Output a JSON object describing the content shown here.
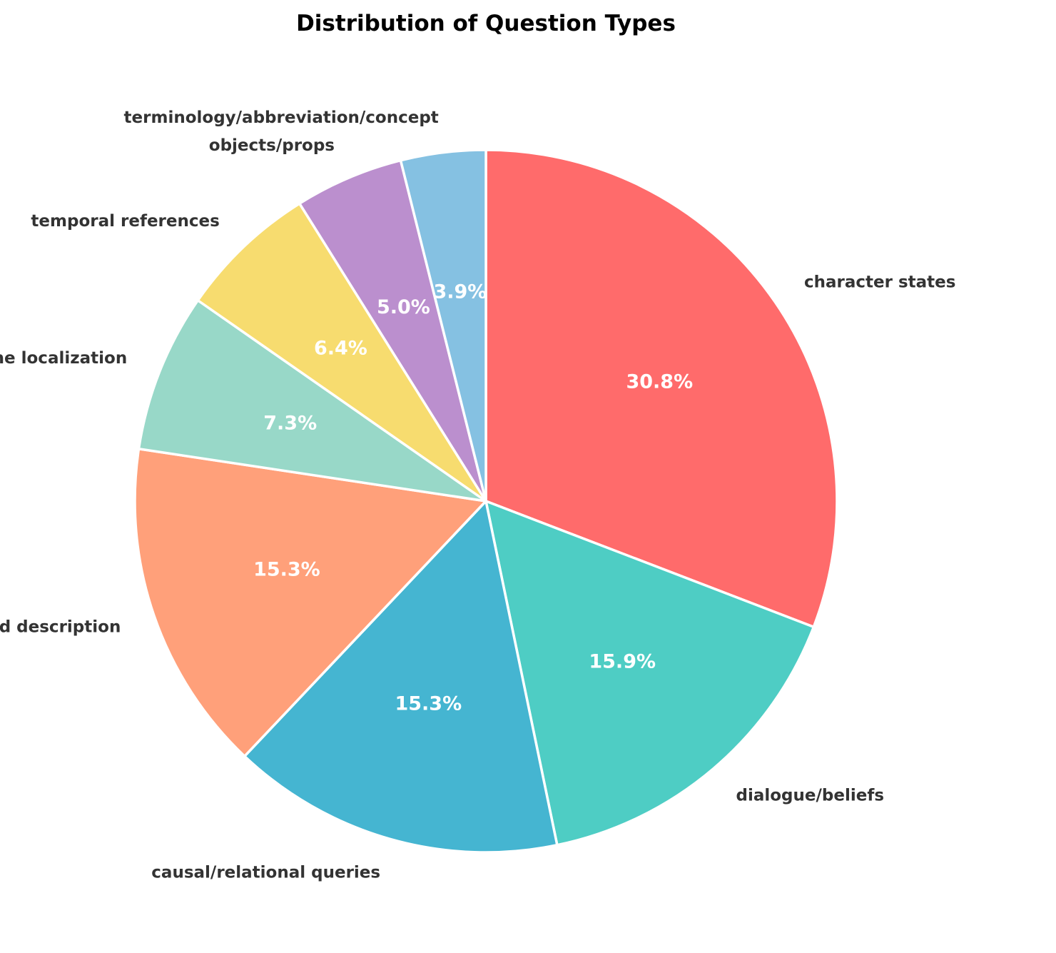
{
  "chart_data": {
    "type": "pie",
    "title": "Distribution of Question Types",
    "start_angle_deg": 90,
    "direction": "clockwise",
    "slices": [
      {
        "label": "character states",
        "value": 30.8,
        "pct_label": "30.8%",
        "color": "#FF6B6B"
      },
      {
        "label": "dialogue/beliefs",
        "value": 15.9,
        "pct_label": "15.9%",
        "color": "#4ECDC4"
      },
      {
        "label": "causal/relational queries",
        "value": 15.3,
        "pct_label": "15.3%",
        "color": "#45B5D1"
      },
      {
        "label": "detailed description",
        "value": 15.3,
        "pct_label": "15.3%",
        "color": "#FFA07A"
      },
      {
        "label": "scene localization",
        "value": 7.3,
        "pct_label": "7.3%",
        "color": "#98D8C8"
      },
      {
        "label": "temporal references",
        "value": 6.4,
        "pct_label": "6.4%",
        "color": "#F7DC6F"
      },
      {
        "label": "objects/props",
        "value": 5.0,
        "pct_label": "5.0%",
        "color": "#BB8FCE"
      },
      {
        "label": "terminology/abbreviation/concept",
        "value": 3.9,
        "pct_label": "3.9%",
        "color": "#85C1E2"
      }
    ],
    "legend": "none"
  }
}
